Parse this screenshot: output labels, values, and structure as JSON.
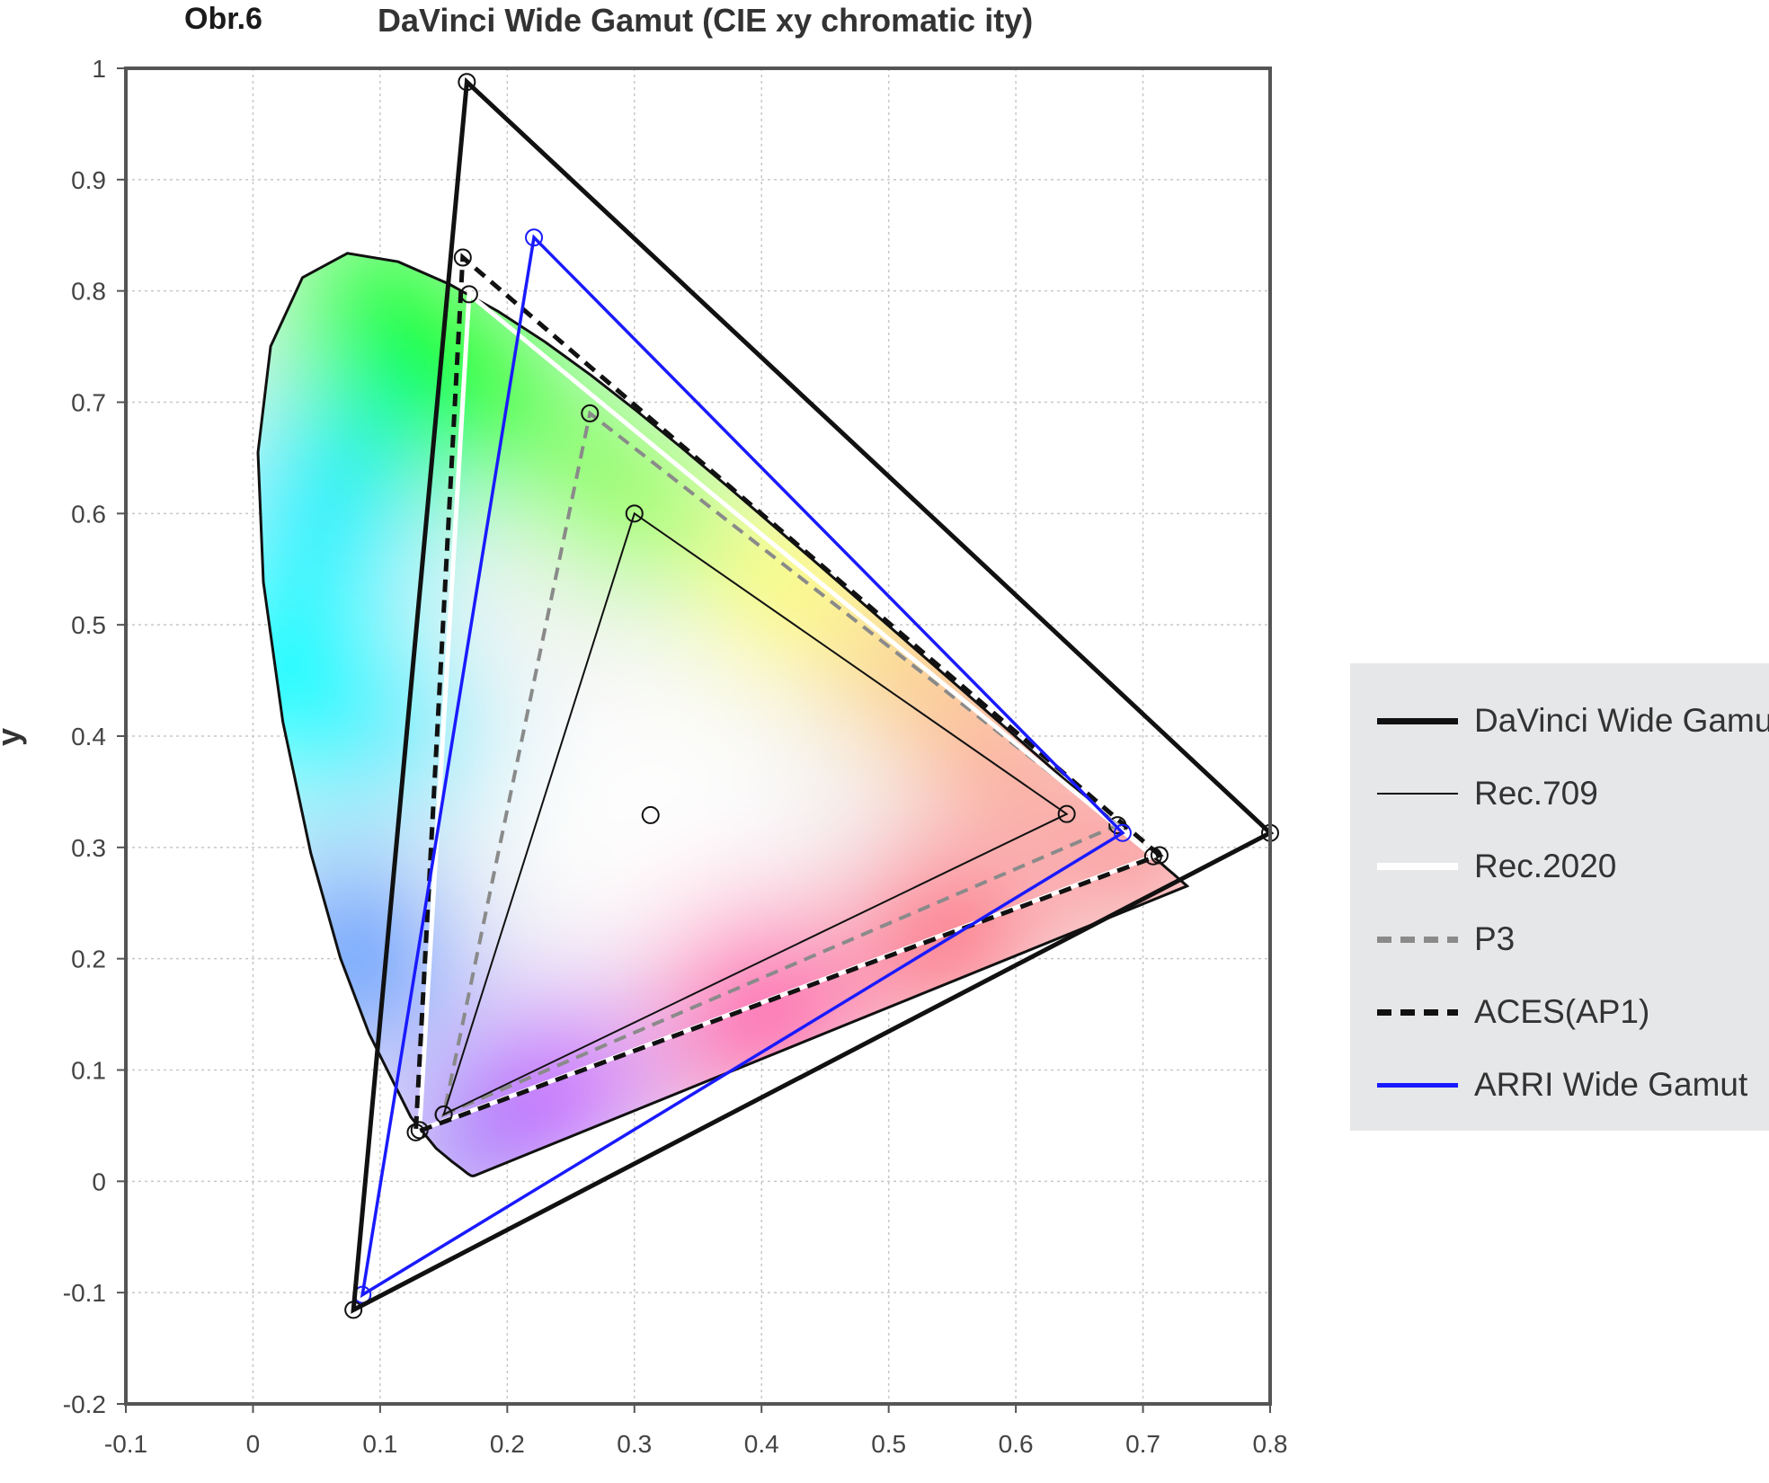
{
  "header": {
    "figure_label": "Obr.6"
  },
  "chart_data": {
    "type": "scatter",
    "title": "DaVinci Wide Gamut (CIE xy chromatic ity)",
    "xlabel": "",
    "ylabel": "y",
    "xlim": [
      -0.1,
      0.8
    ],
    "ylim": [
      -0.2,
      1.0
    ],
    "x_ticks": [
      "-0.1",
      "0",
      "0.1",
      "0.2",
      "0.3",
      "0.4",
      "0.5",
      "0.6",
      "0.7",
      "0.8"
    ],
    "y_ticks": [
      "-0.2",
      "-0.1",
      "0",
      "0.1",
      "0.2",
      "0.3",
      "0.4",
      "0.5",
      "0.6",
      "0.7",
      "0.8",
      "0.9",
      "1"
    ],
    "grid": true,
    "legend_position": "right",
    "spectral_locus": {
      "x": [
        0.1741,
        0.174,
        0.1736,
        0.1726,
        0.1714,
        0.1689,
        0.1644,
        0.1566,
        0.144,
        0.1241,
        0.0913,
        0.0687,
        0.0454,
        0.0235,
        0.0082,
        0.0039,
        0.0139,
        0.0389,
        0.0743,
        0.1142,
        0.1547,
        0.1929,
        0.2296,
        0.2658,
        0.3016,
        0.3373,
        0.3731,
        0.4087,
        0.4441,
        0.4788,
        0.5125,
        0.5448,
        0.5752,
        0.6029,
        0.627,
        0.6482,
        0.6658,
        0.6801,
        0.6915,
        0.7006,
        0.7079,
        0.714,
        0.719,
        0.723,
        0.726,
        0.7283,
        0.73,
        0.7311,
        0.732,
        0.7327,
        0.7334,
        0.734,
        0.7344,
        0.7346,
        0.7347
      ],
      "y": [
        0.005,
        0.005,
        0.0049,
        0.0048,
        0.0051,
        0.0069,
        0.0109,
        0.0177,
        0.0297,
        0.0578,
        0.1327,
        0.2007,
        0.295,
        0.4127,
        0.5384,
        0.6548,
        0.7502,
        0.812,
        0.8338,
        0.8262,
        0.8059,
        0.7816,
        0.7543,
        0.7243,
        0.6923,
        0.6589,
        0.6245,
        0.5896,
        0.5547,
        0.5202,
        0.4866,
        0.4544,
        0.4242,
        0.3965,
        0.3725,
        0.3514,
        0.334,
        0.3197,
        0.3083,
        0.2993,
        0.292,
        0.2859,
        0.2809,
        0.277,
        0.274,
        0.2717,
        0.27,
        0.2689,
        0.268,
        0.2673,
        0.2666,
        0.266,
        0.2656,
        0.2654,
        0.2653
      ]
    },
    "series": [
      {
        "name": "DaVinci Wide Gamut",
        "color": "#111111",
        "style": "solid-thick",
        "x": [
          0.8,
          0.1682,
          0.079
        ],
        "y": [
          0.313,
          0.9877,
          -0.1155
        ]
      },
      {
        "name": "Rec.709",
        "color": "#111111",
        "style": "solid-thin",
        "x": [
          0.64,
          0.3,
          0.15
        ],
        "y": [
          0.33,
          0.6,
          0.06
        ]
      },
      {
        "name": "Rec.2020",
        "color": "#ffffff",
        "style": "solid-white",
        "x": [
          0.708,
          0.17,
          0.131
        ],
        "y": [
          0.292,
          0.797,
          0.046
        ]
      },
      {
        "name": "P3",
        "color": "#8a8a8a",
        "style": "dashed-gray",
        "x": [
          0.68,
          0.265,
          0.15
        ],
        "y": [
          0.32,
          0.69,
          0.06
        ]
      },
      {
        "name": "ACES(AP1)",
        "color": "#111111",
        "style": "dashed-black",
        "x": [
          0.713,
          0.165,
          0.128
        ],
        "y": [
          0.293,
          0.83,
          0.044
        ]
      },
      {
        "name": "ARRI Wide Gamut",
        "color": "#1a1aff",
        "style": "solid-blue",
        "x": [
          0.684,
          0.221,
          0.0861
        ],
        "y": [
          0.313,
          0.848,
          -0.102
        ]
      }
    ],
    "white_point": {
      "x": 0.3127,
      "y": 0.329
    }
  }
}
